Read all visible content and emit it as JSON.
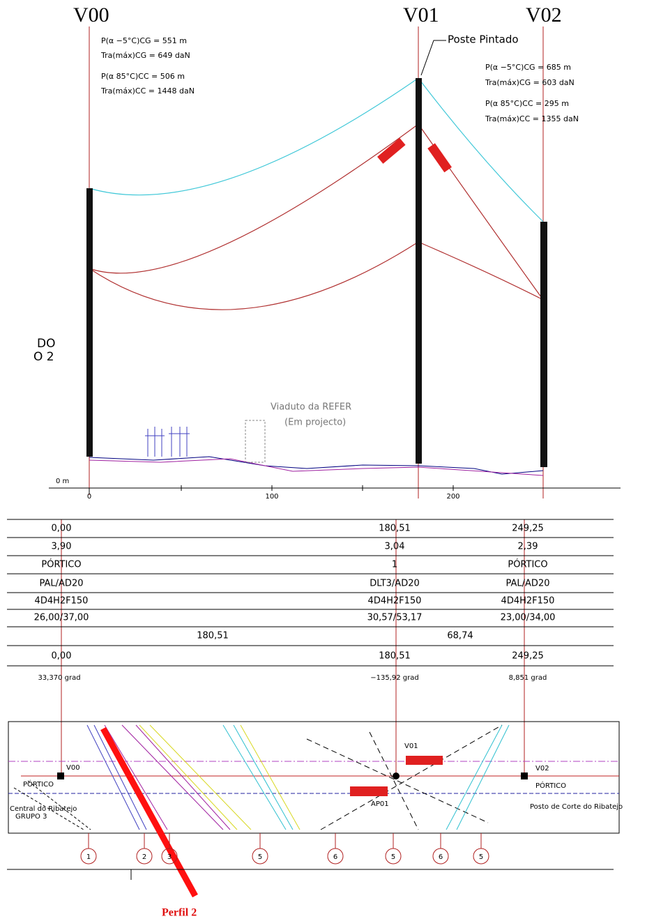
{
  "profile": {
    "towers": [
      "V00",
      "V01",
      "V02"
    ],
    "v00_notes": [
      "P(α −5°C)CG = 551 m",
      "Tra(máx)CG = 649 daN",
      "P(α 85°C)CC = 506 m",
      "Tra(máx)CC = 1448 daN"
    ],
    "callout": "Poste Pintado",
    "v02_notes": [
      "P(α −5°C)CG = 685 m",
      "Tra(máx)CG = 603 daN",
      "P(α 85°C)CC = 295 m",
      "Tra(máx)CC = 1355 daN"
    ],
    "left_fragment": [
      "DO",
      "O 2"
    ],
    "viaduct": [
      "Viaduto da REFER",
      "(Em projecto)"
    ],
    "origin_label": "0 m",
    "axis_ticks": [
      "0",
      "100",
      "200"
    ]
  },
  "table": {
    "rows": [
      [
        "0,00",
        "180,51",
        "249,25"
      ],
      [
        "3,90",
        "3,04",
        "2,39"
      ],
      [
        "PÓRTICO",
        "1",
        "PÓRTICO"
      ],
      [
        "PAL/AD20",
        "DLT3/AD20",
        "PAL/AD20"
      ],
      [
        "4D4H2F150",
        "4D4H2F150",
        "4D4H2F150"
      ],
      [
        "26,00/37,00",
        "30,57/53,17",
        "23,00/34,00"
      ],
      [
        "180,51",
        "68,74"
      ],
      [
        "0,00",
        "180,51",
        "249,25"
      ]
    ]
  },
  "angles": [
    "33,370 grad",
    "−135,92 grad",
    "8,851 grad"
  ],
  "plan": {
    "v00": "V00",
    "portico_left": "PÓRTICO",
    "central": [
      "Central do Ribatejo",
      "GRUPO 3"
    ],
    "v01": "V01",
    "ap01": "AP01",
    "v02": "V02",
    "portico_right": "PÓRTICO",
    "posto": "Posto de Corte do Ribatejo",
    "zones": [
      "1",
      "2",
      "3",
      "5",
      "6",
      "5",
      "6",
      "5"
    ]
  },
  "caption": "Perfil 2"
}
